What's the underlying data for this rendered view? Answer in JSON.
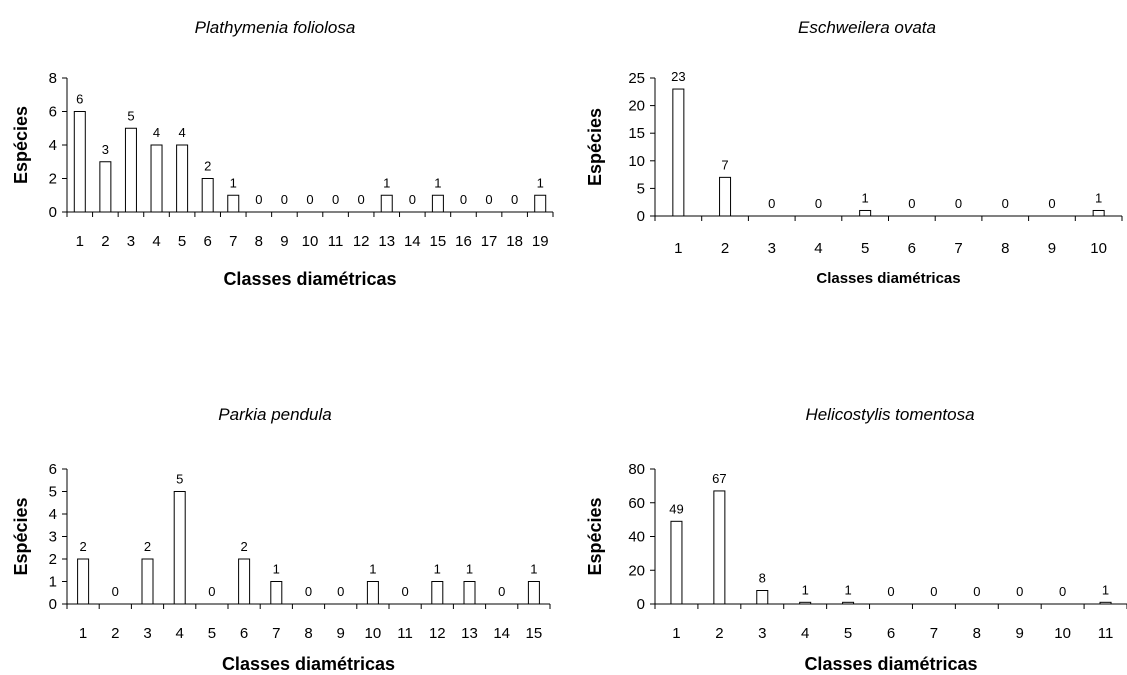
{
  "chart_data": [
    {
      "type": "bar",
      "title": "Plathymenia foliolosa",
      "ylabel": "Espécies",
      "xlabel": "Classes diamétricas",
      "categories": [
        "1",
        "2",
        "3",
        "4",
        "5",
        "6",
        "7",
        "8",
        "9",
        "10",
        "11",
        "12",
        "13",
        "14",
        "15",
        "16",
        "17",
        "18",
        "19"
      ],
      "values": [
        6,
        3,
        5,
        4,
        4,
        2,
        1,
        0,
        0,
        0,
        0,
        0,
        1,
        0,
        1,
        0,
        0,
        0,
        1
      ],
      "yticks": [
        0,
        2,
        4,
        6,
        8
      ],
      "ylim": [
        0,
        8
      ]
    },
    {
      "type": "bar",
      "title": "Eschweilera ovata",
      "ylabel": "Espécies",
      "xlabel": "Classes diamétricas",
      "categories": [
        "1",
        "2",
        "3",
        "4",
        "5",
        "6",
        "7",
        "8",
        "9",
        "10"
      ],
      "values": [
        23,
        7,
        0,
        0,
        1,
        0,
        0,
        0,
        0,
        1
      ],
      "yticks": [
        0,
        5,
        10,
        15,
        20,
        25
      ],
      "ylim": [
        0,
        25
      ]
    },
    {
      "type": "bar",
      "title": "Parkia pendula",
      "ylabel": "Espécies",
      "xlabel": "Classes diamétricas",
      "categories": [
        "1",
        "2",
        "3",
        "4",
        "5",
        "6",
        "7",
        "8",
        "9",
        "10",
        "11",
        "12",
        "13",
        "14",
        "15"
      ],
      "values": [
        2,
        0,
        2,
        5,
        0,
        2,
        1,
        0,
        0,
        1,
        0,
        1,
        1,
        0,
        1
      ],
      "yticks": [
        0,
        1,
        2,
        3,
        4,
        5,
        6
      ],
      "ylim": [
        0,
        6
      ]
    },
    {
      "type": "bar",
      "title": "Helicostylis tomentosa",
      "ylabel": "Espécies",
      "xlabel": "Classes diamétricas",
      "categories": [
        "1",
        "2",
        "3",
        "4",
        "5",
        "6",
        "7",
        "8",
        "9",
        "10",
        "11"
      ],
      "values": [
        49,
        67,
        8,
        1,
        1,
        0,
        0,
        0,
        0,
        0,
        1
      ],
      "yticks": [
        0,
        20,
        40,
        60,
        80
      ],
      "ylim": [
        0,
        80
      ]
    }
  ]
}
